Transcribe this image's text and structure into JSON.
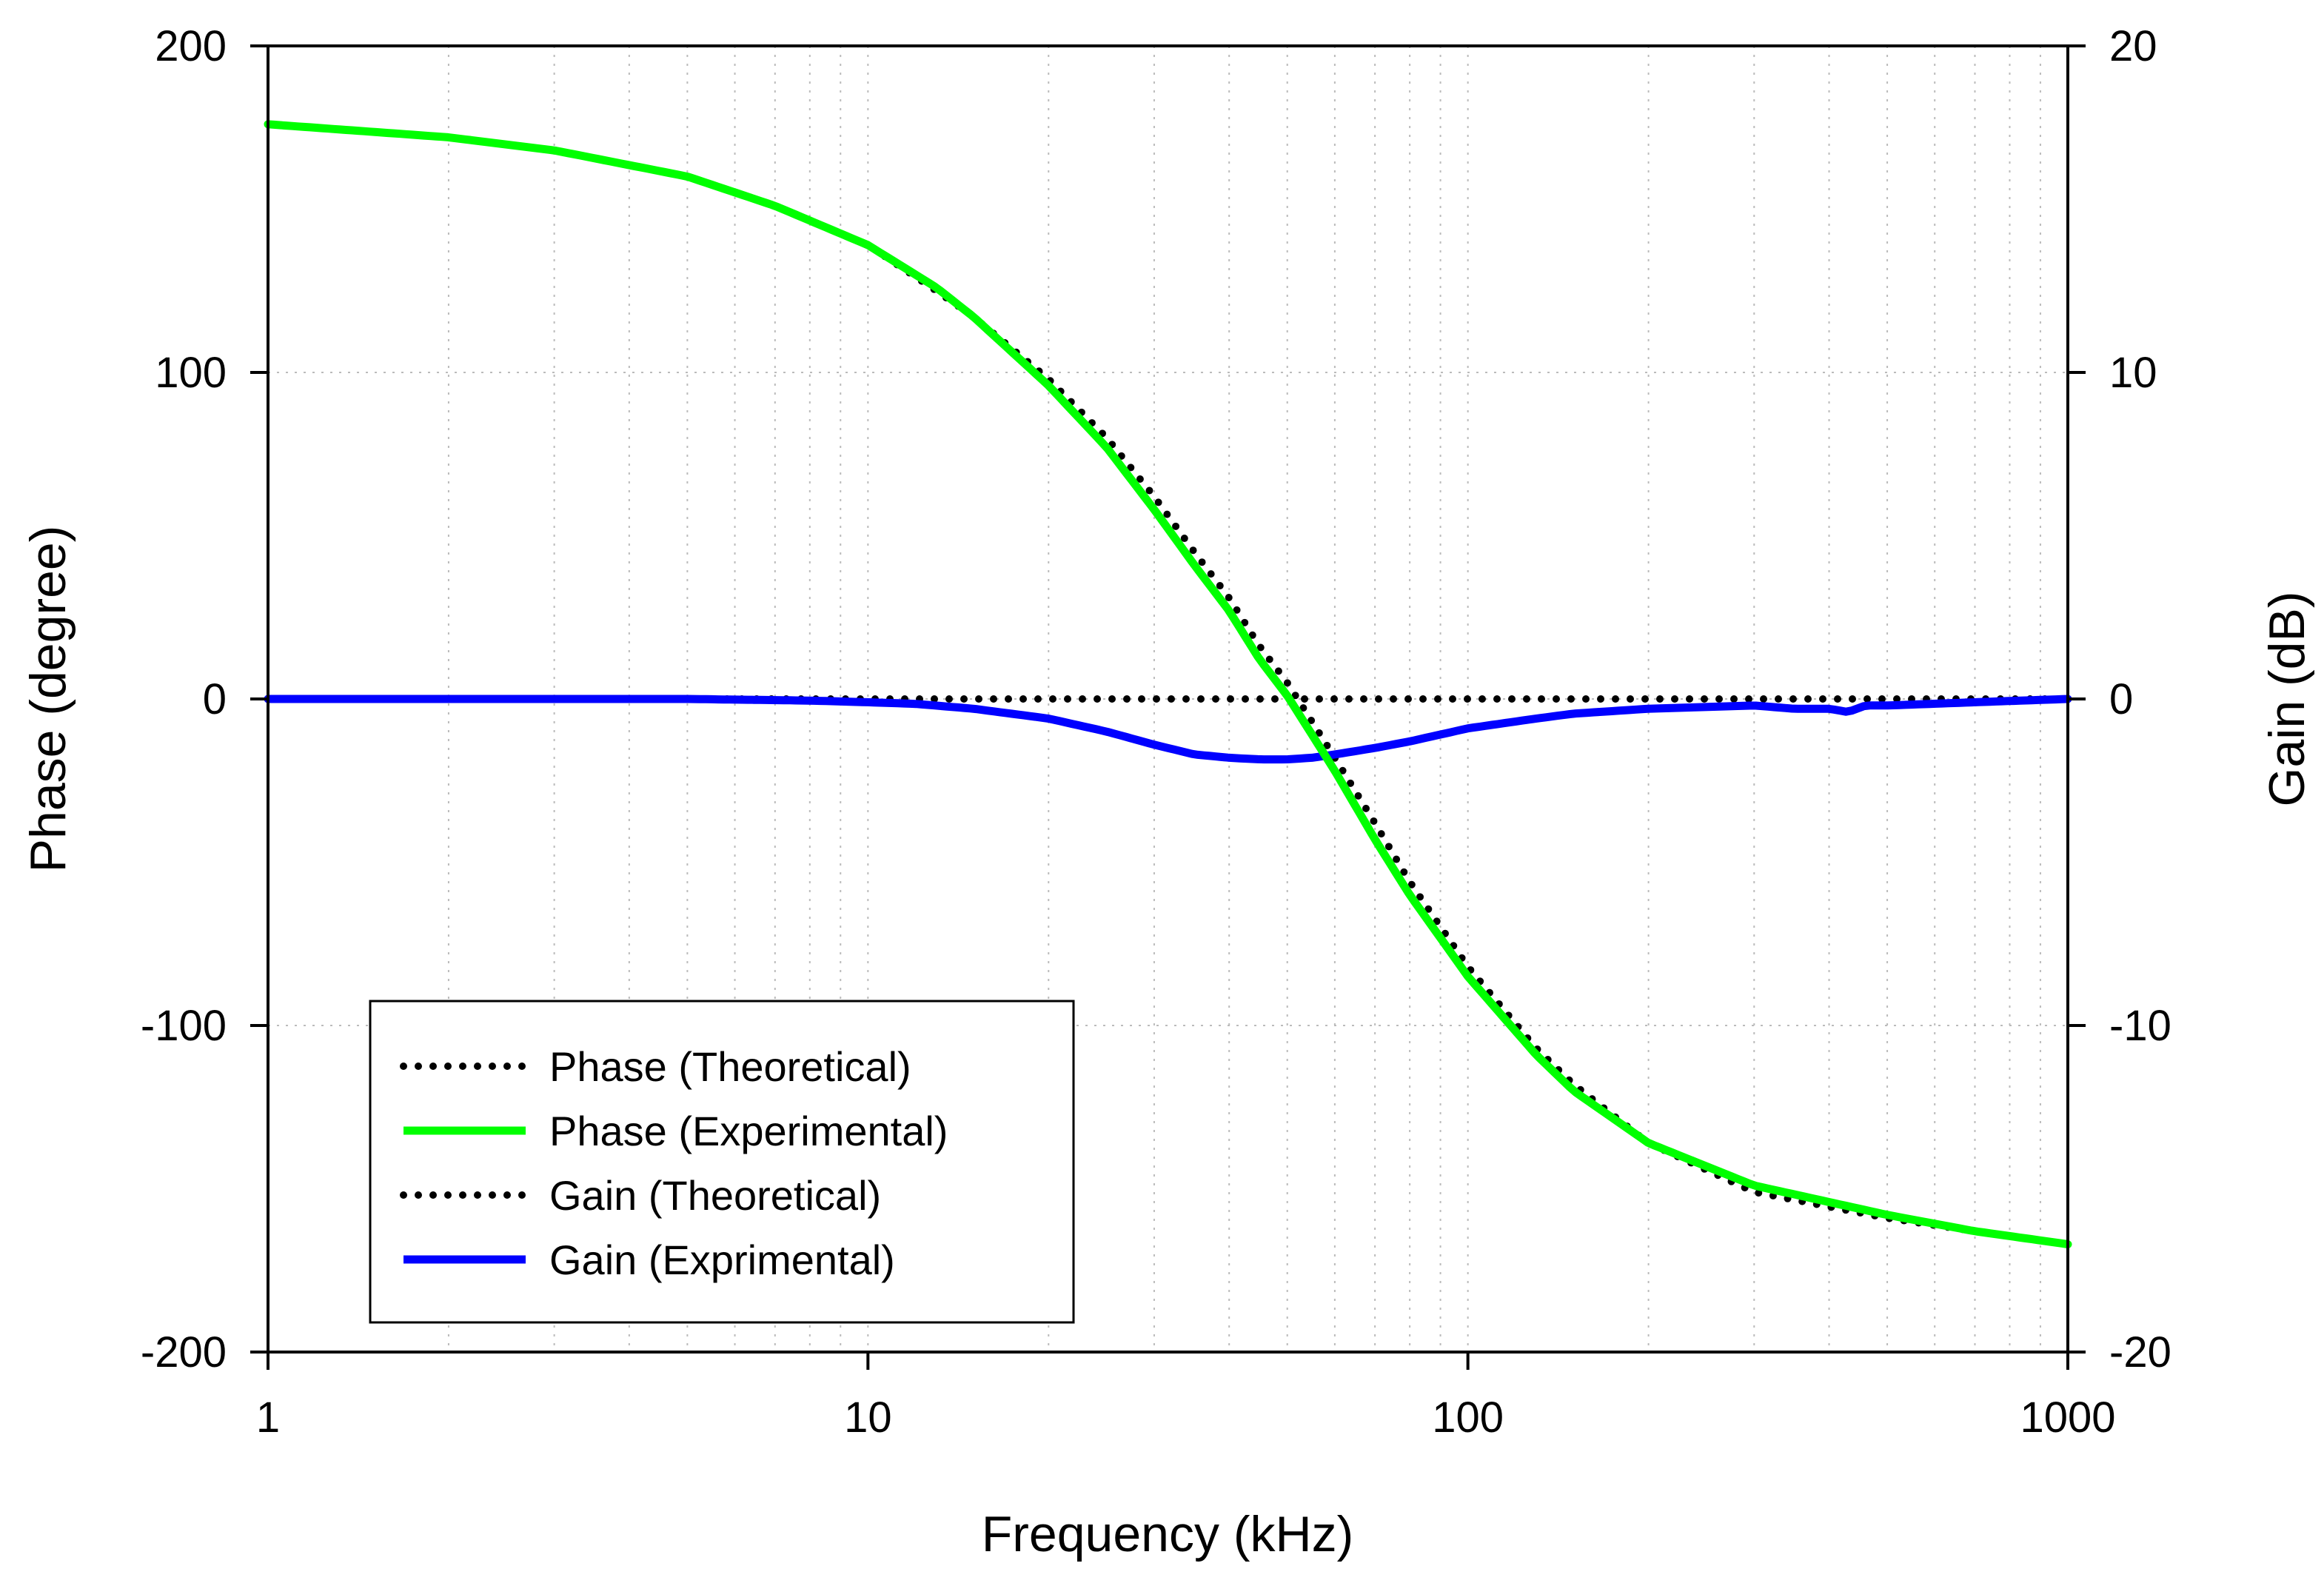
{
  "chart_data": {
    "type": "line",
    "title": "",
    "xlabel": "Frequency (kHz)",
    "ylabel": "Phase (degree)",
    "y2label": "Gain (dB)",
    "xscale": "log",
    "xlim": [
      1,
      1000
    ],
    "ylim": [
      -200,
      200
    ],
    "y2lim": [
      -20,
      20
    ],
    "grid": true,
    "legend_position": "bottom-left",
    "x_ticks": [
      {
        "value": 1,
        "label": "1"
      },
      {
        "value": 10,
        "label": "10"
      },
      {
        "value": 100,
        "label": "100"
      },
      {
        "value": 1000,
        "label": "1000"
      }
    ],
    "y_ticks": [
      {
        "value": 200,
        "label": "200"
      },
      {
        "value": 100,
        "label": "100"
      },
      {
        "value": 0,
        "label": "0"
      },
      {
        "value": -100,
        "label": "-100"
      },
      {
        "value": -200,
        "label": "-200"
      }
    ],
    "y2_ticks": [
      {
        "value": 20,
        "label": "20"
      },
      {
        "value": 10,
        "label": "10"
      },
      {
        "value": 0,
        "label": "0"
      },
      {
        "value": -10,
        "label": "-10"
      },
      {
        "value": -20,
        "label": "-20"
      }
    ],
    "series": [
      {
        "name": "Phase (Theoretical)",
        "axis": "left",
        "style": "dotted",
        "color": "#000000",
        "x": [
          1,
          2,
          3,
          5,
          7,
          10,
          13,
          15,
          20,
          25,
          30,
          35,
          40,
          45,
          50,
          55,
          60,
          70,
          80,
          100,
          130,
          150,
          200,
          300,
          500,
          700,
          1000
        ],
        "y": [
          176,
          172,
          168,
          160,
          151,
          139,
          125,
          117,
          98,
          80,
          62,
          45,
          31,
          16,
          5,
          -7,
          -18,
          -38,
          -56,
          -82,
          -107,
          -118,
          -136,
          -151,
          -159,
          -163,
          -167
        ]
      },
      {
        "name": "Phase (Experimental)",
        "axis": "left",
        "style": "solid",
        "color": "#00ff00",
        "x": [
          1,
          2,
          3,
          5,
          7,
          10,
          13,
          15,
          20,
          25,
          30,
          35,
          40,
          45,
          50,
          55,
          60,
          70,
          80,
          100,
          130,
          150,
          200,
          300,
          500,
          700,
          1000
        ],
        "y": [
          176,
          172,
          168,
          160,
          151,
          139,
          126,
          117,
          96,
          77,
          58,
          41,
          27,
          12,
          1,
          -11,
          -22,
          -43,
          -60,
          -85,
          -109,
          -120,
          -136,
          -149,
          -158,
          -163,
          -167
        ]
      },
      {
        "name": "Gain (Theoretical)",
        "axis": "right",
        "style": "dotted",
        "color": "#000000",
        "x": [
          1,
          10,
          100,
          1000
        ],
        "y": [
          0,
          0,
          0,
          0
        ]
      },
      {
        "name": "Gain (Exprimental)",
        "axis": "right",
        "style": "solid",
        "color": "#0000ff",
        "x": [
          1,
          3,
          5,
          8,
          10,
          12,
          15,
          20,
          25,
          30,
          35,
          40,
          45,
          50,
          55,
          60,
          70,
          80,
          100,
          130,
          150,
          200,
          300,
          350,
          400,
          430,
          460,
          500,
          700,
          1000
        ],
        "y": [
          0,
          0,
          0,
          -0.05,
          -0.1,
          -0.15,
          -0.3,
          -0.6,
          -1.0,
          -1.4,
          -1.7,
          -1.8,
          -1.85,
          -1.85,
          -1.8,
          -1.7,
          -1.5,
          -1.3,
          -0.9,
          -0.6,
          -0.45,
          -0.3,
          -0.2,
          -0.3,
          -0.3,
          -0.4,
          -0.2,
          -0.2,
          -0.1,
          0
        ]
      }
    ]
  }
}
